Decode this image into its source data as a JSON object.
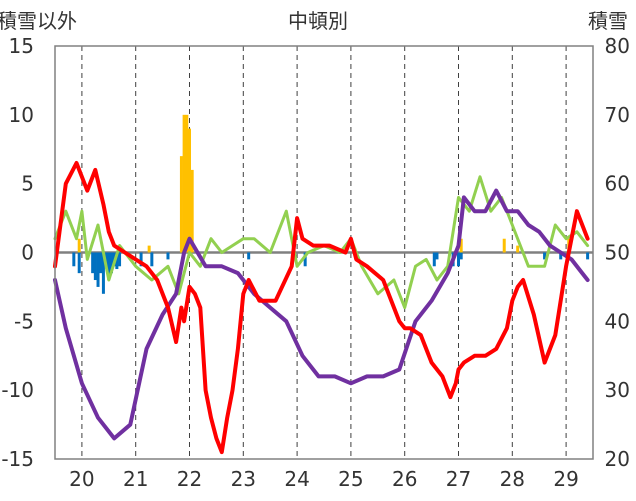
{
  "chart_data": {
    "type": "line",
    "title": "中頓別",
    "left_axis_label": "積雪以外",
    "right_axis_label": "積雪",
    "ylim_left": [
      -15,
      15
    ],
    "ylim_right": [
      20,
      80
    ],
    "yticks_left": [
      "15",
      "10",
      "5",
      "0",
      "-5",
      "-10",
      "-15"
    ],
    "yticks_right": [
      "80",
      "70",
      "60",
      "50",
      "40",
      "30",
      "20"
    ],
    "xlim": [
      19.5,
      29.5
    ],
    "x_categories": [
      "20",
      "21",
      "22",
      "23",
      "24",
      "25",
      "26",
      "27",
      "28",
      "29"
    ],
    "grid": "vertical dashed at category centers",
    "colors": {
      "red": "#ff0000",
      "purple": "#7030a0",
      "green": "#92d050",
      "blue": "#0070c0",
      "orange": "#ffc000",
      "zero_line": "#808080"
    },
    "series": [
      {
        "axis": "left",
        "color": "red",
        "kind": "line",
        "x": [
          19.5,
          19.7,
          19.9,
          20.0,
          20.1,
          20.25,
          20.4,
          20.5,
          20.6,
          20.8,
          21.0,
          21.2,
          21.4,
          21.6,
          21.75,
          21.85,
          21.9,
          22.0,
          22.1,
          22.2,
          22.3,
          22.4,
          22.5,
          22.6,
          22.7,
          22.8,
          22.9,
          23.0,
          23.1,
          23.3,
          23.6,
          23.9,
          24.0,
          24.1,
          24.3,
          24.6,
          24.9,
          25.0,
          25.1,
          25.3,
          25.6,
          25.9,
          26.0,
          26.1,
          26.3,
          26.5,
          26.7,
          26.85,
          26.95,
          27.0,
          27.1,
          27.3,
          27.5,
          27.7,
          27.9,
          28.0,
          28.1,
          28.2,
          28.4,
          28.6,
          28.8,
          29.0,
          29.2,
          29.4
        ],
        "y": [
          -1,
          5,
          6.5,
          5.5,
          4.5,
          6,
          3.5,
          1.5,
          0.5,
          0,
          -0.5,
          -1,
          -2,
          -4,
          -6.5,
          -4,
          -5,
          -2.5,
          -3,
          -4,
          -10,
          -12,
          -13.5,
          -14.5,
          -12,
          -10,
          -7,
          -3,
          -2,
          -3.5,
          -3.5,
          -1,
          2.5,
          1,
          0.5,
          0.5,
          0,
          1,
          -0.5,
          -1,
          -2,
          -5,
          -5.5,
          -5.5,
          -6,
          -8,
          -9,
          -10.5,
          -9.5,
          -8.5,
          -8,
          -7.5,
          -7.5,
          -7,
          -5.5,
          -3.5,
          -2.5,
          -2,
          -4.5,
          -8,
          -6,
          -1,
          3,
          1
        ]
      },
      {
        "axis": "left",
        "color": "green",
        "kind": "line",
        "x": [
          19.5,
          19.7,
          19.9,
          20.0,
          20.1,
          20.3,
          20.5,
          20.7,
          21.0,
          21.3,
          21.6,
          21.8,
          22.0,
          22.2,
          22.4,
          22.6,
          22.8,
          23.0,
          23.2,
          23.5,
          23.8,
          24.0,
          24.2,
          24.5,
          24.8,
          25.0,
          25.2,
          25.5,
          25.8,
          26.0,
          26.2,
          26.4,
          26.6,
          26.8,
          27.0,
          27.2,
          27.4,
          27.6,
          27.8,
          28.0,
          28.3,
          28.6,
          28.8,
          29.0,
          29.2,
          29.4
        ],
        "y": [
          1,
          3,
          1,
          3,
          -0.5,
          2,
          -2,
          0.5,
          -1,
          -2,
          -1,
          -3,
          0,
          -1,
          1,
          0,
          0.5,
          1,
          1,
          0,
          3,
          -1,
          0,
          0.5,
          0,
          1,
          -1,
          -3,
          -2,
          -4,
          -1,
          -0.5,
          -2,
          -1,
          4,
          3,
          5.5,
          3,
          4,
          2,
          -1,
          -1,
          2,
          1,
          1.5,
          0.5
        ]
      },
      {
        "axis": "right",
        "color": "purple",
        "kind": "line",
        "x": [
          19.5,
          19.7,
          20.0,
          20.3,
          20.6,
          20.9,
          21.2,
          21.5,
          21.75,
          21.9,
          22.0,
          22.3,
          22.6,
          22.9,
          23.2,
          23.5,
          23.8,
          24.1,
          24.4,
          24.7,
          25.0,
          25.3,
          25.6,
          25.9,
          26.2,
          26.5,
          26.8,
          27.0,
          27.1,
          27.3,
          27.5,
          27.7,
          27.9,
          28.1,
          28.3,
          28.5,
          28.7,
          28.9,
          29.1,
          29.3,
          29.4
        ],
        "y": [
          46,
          39,
          31,
          26,
          23,
          25,
          36,
          41,
          44,
          50,
          52,
          48,
          48,
          47,
          44,
          42,
          40,
          35,
          32,
          32,
          31,
          32,
          32,
          33,
          40,
          43,
          47,
          51,
          58,
          56,
          56,
          59,
          56,
          56,
          54,
          53,
          51,
          50,
          49,
          47,
          46
        ]
      }
    ],
    "bars": [
      {
        "axis": "left",
        "color": "blue",
        "x": [
          19.85,
          19.95,
          20.2,
          20.25,
          20.3,
          20.35,
          20.4,
          20.45,
          20.5,
          20.55,
          20.6,
          20.65,
          20.7,
          21.1,
          21.3,
          21.6,
          23.1,
          24.15,
          26.55,
          26.6,
          26.9,
          27.0,
          27.05,
          28.6,
          28.9,
          29.4
        ],
        "y": [
          -1,
          -1.5,
          -1.5,
          -2,
          -2.5,
          -1.5,
          -3,
          -1,
          -2,
          -1.5,
          -1,
          -1.2,
          -1,
          -1,
          -1,
          -0.5,
          -0.5,
          -1,
          -1,
          -0.5,
          -1,
          -1,
          -0.5,
          -0.5,
          -0.5,
          -0.5
        ]
      },
      {
        "axis": "left",
        "color": "orange",
        "x": [
          19.95,
          21.25,
          21.85,
          21.9,
          21.95,
          22.0,
          22.05,
          27.05,
          27.85,
          28.1,
          29.05
        ],
        "y": [
          1,
          0.5,
          7,
          10,
          10,
          9,
          6,
          1,
          1,
          0.5,
          1
        ]
      }
    ]
  }
}
